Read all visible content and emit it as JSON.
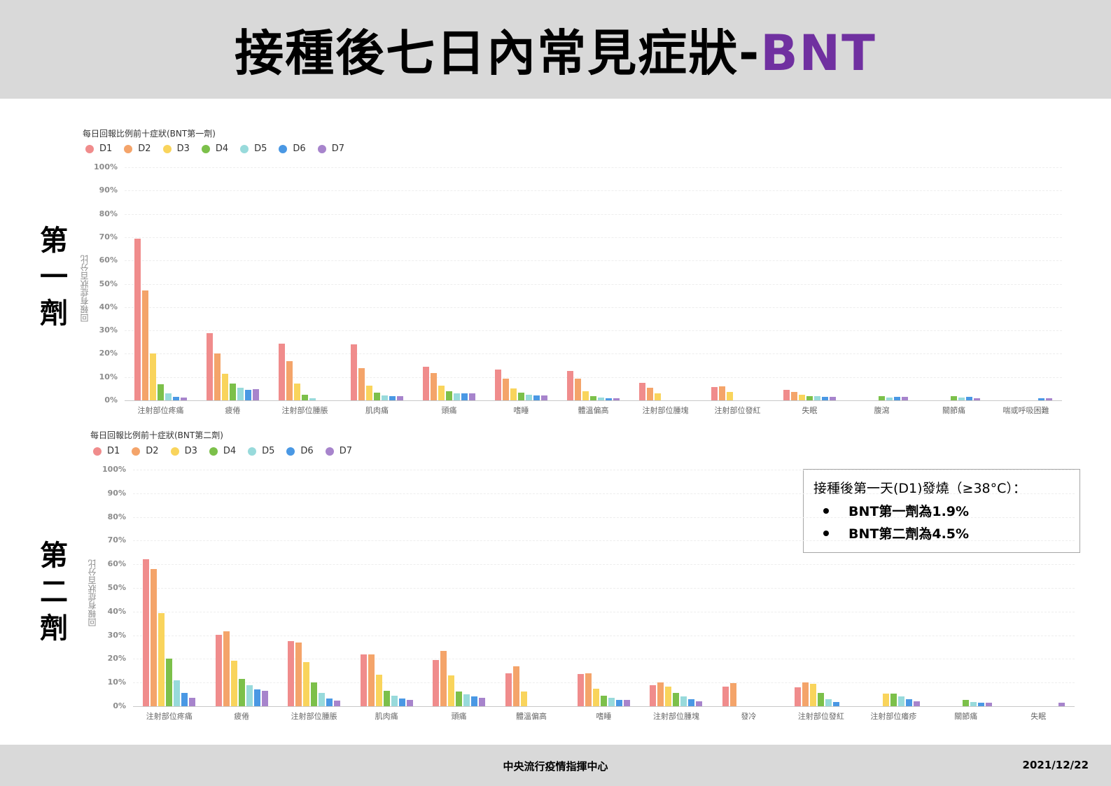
{
  "header": {
    "title_main": "接種後七日內常見症狀-",
    "title_accent": "BNT",
    "accent_color": "#7030a0"
  },
  "dose_labels": {
    "first": [
      "第",
      "一",
      "劑"
    ],
    "second": [
      "第",
      "二",
      "劑"
    ]
  },
  "callout": {
    "heading": "接種後第一天(D1)發燒（≥38°C）：",
    "items": [
      "BNT第一劑為1.9%",
      "BNT第二劑為4.5%"
    ]
  },
  "footer": {
    "org": "中央流行疫情指揮中心",
    "date": "2021/12/22"
  },
  "chart_data": [
    {
      "type": "bar",
      "title": "每日回報比例前十症狀(BNT第一劑)",
      "xlabel": "",
      "ylabel": "回報有症狀百分比",
      "ylim": [
        0,
        100
      ],
      "yticks": [
        "0%",
        "10%",
        "20%",
        "30%",
        "40%",
        "50%",
        "60%",
        "70%",
        "80%",
        "90%",
        "100%"
      ],
      "grid": true,
      "legend_position": "top-left",
      "colors": [
        "#f08c8c",
        "#f4a46a",
        "#f9d45c",
        "#7cc04a",
        "#98dadb",
        "#4a98e4",
        "#a784cc"
      ],
      "categories": [
        "注射部位疼痛",
        "疲倦",
        "注射部位腫脹",
        "肌肉痛",
        "頭痛",
        "嗜睡",
        "體溫偏高",
        "注射部位腫塊",
        "注射部位發紅",
        "失眠",
        "腹瀉",
        "關節痛",
        "喘或呼吸困難"
      ],
      "series": [
        {
          "name": "D1",
          "values": [
            69.4,
            28.8,
            24.3,
            24.0,
            14.4,
            13.2,
            12.6,
            7.5,
            5.7,
            4.5,
            0,
            0,
            0
          ]
        },
        {
          "name": "D2",
          "values": [
            47.1,
            20.1,
            16.8,
            13.8,
            11.7,
            9.3,
            9.3,
            5.4,
            6.0,
            3.6,
            0,
            0,
            0
          ]
        },
        {
          "name": "D3",
          "values": [
            20.1,
            11.4,
            7.2,
            6.3,
            6.3,
            5.1,
            3.9,
            3.0,
            3.6,
            2.4,
            0,
            0,
            0
          ]
        },
        {
          "name": "D4",
          "values": [
            6.9,
            7.2,
            2.4,
            3.3,
            3.9,
            3.3,
            1.8,
            0,
            0,
            1.8,
            1.8,
            1.8,
            0
          ]
        },
        {
          "name": "D5",
          "values": [
            3.0,
            5.4,
            0.9,
            2.1,
            3.0,
            2.4,
            1.2,
            0,
            0,
            1.8,
            1.2,
            1.2,
            0
          ]
        },
        {
          "name": "D6",
          "values": [
            1.5,
            4.5,
            0,
            1.8,
            3.0,
            2.1,
            0.9,
            0,
            0,
            1.5,
            1.5,
            1.5,
            0.8
          ]
        },
        {
          "name": "D7",
          "values": [
            1.2,
            4.8,
            0,
            1.8,
            3.0,
            2.1,
            0.9,
            0,
            0,
            1.5,
            1.5,
            1.0,
            0.8
          ]
        }
      ]
    },
    {
      "type": "bar",
      "title": "每日回報比例前十症狀(BNT第二劑)",
      "xlabel": "",
      "ylabel": "回報有症狀百分比",
      "ylim": [
        0,
        100
      ],
      "yticks": [
        "0%",
        "10%",
        "20%",
        "30%",
        "40%",
        "50%",
        "60%",
        "70%",
        "80%",
        "90%",
        "100%"
      ],
      "grid": true,
      "legend_position": "top-left",
      "colors": [
        "#f08c8c",
        "#f4a46a",
        "#f9d45c",
        "#7cc04a",
        "#98dadb",
        "#4a98e4",
        "#a784cc"
      ],
      "categories": [
        "注射部位疼痛",
        "疲倦",
        "注射部位腫脹",
        "肌肉痛",
        "頭痛",
        "體溫偏高",
        "嗜睡",
        "注射部位腫塊",
        "發冷",
        "注射部位發紅",
        "注射部位癢疹",
        "關節痛",
        "失眠"
      ],
      "series": [
        {
          "name": "D1",
          "values": [
            62.1,
            30.2,
            27.5,
            21.9,
            19.5,
            13.9,
            13.6,
            8.9,
            8.3,
            8.0,
            0,
            0,
            0
          ]
        },
        {
          "name": "D2",
          "values": [
            58.0,
            31.7,
            26.9,
            21.9,
            23.4,
            16.9,
            13.9,
            10.1,
            9.8,
            10.1,
            0,
            0,
            0
          ]
        },
        {
          "name": "D3",
          "values": [
            39.3,
            19.2,
            18.6,
            13.3,
            13.0,
            6.2,
            7.4,
            8.3,
            0,
            9.5,
            5.3,
            0,
            0
          ]
        },
        {
          "name": "D4",
          "values": [
            20.1,
            11.5,
            10.1,
            6.5,
            6.2,
            0,
            4.4,
            5.6,
            0,
            5.6,
            5.3,
            2.7,
            0
          ]
        },
        {
          "name": "D5",
          "values": [
            10.9,
            8.9,
            5.6,
            4.4,
            5.0,
            0,
            3.6,
            4.1,
            0,
            3.0,
            4.1,
            1.8,
            0
          ]
        },
        {
          "name": "D6",
          "values": [
            5.6,
            7.1,
            3.3,
            3.3,
            4.1,
            0,
            2.7,
            3.0,
            0,
            1.8,
            3.0,
            1.5,
            0
          ]
        },
        {
          "name": "D7",
          "values": [
            3.6,
            6.5,
            2.4,
            2.7,
            3.6,
            0,
            2.7,
            2.1,
            0,
            0,
            2.1,
            1.5,
            1.5
          ]
        }
      ]
    }
  ]
}
